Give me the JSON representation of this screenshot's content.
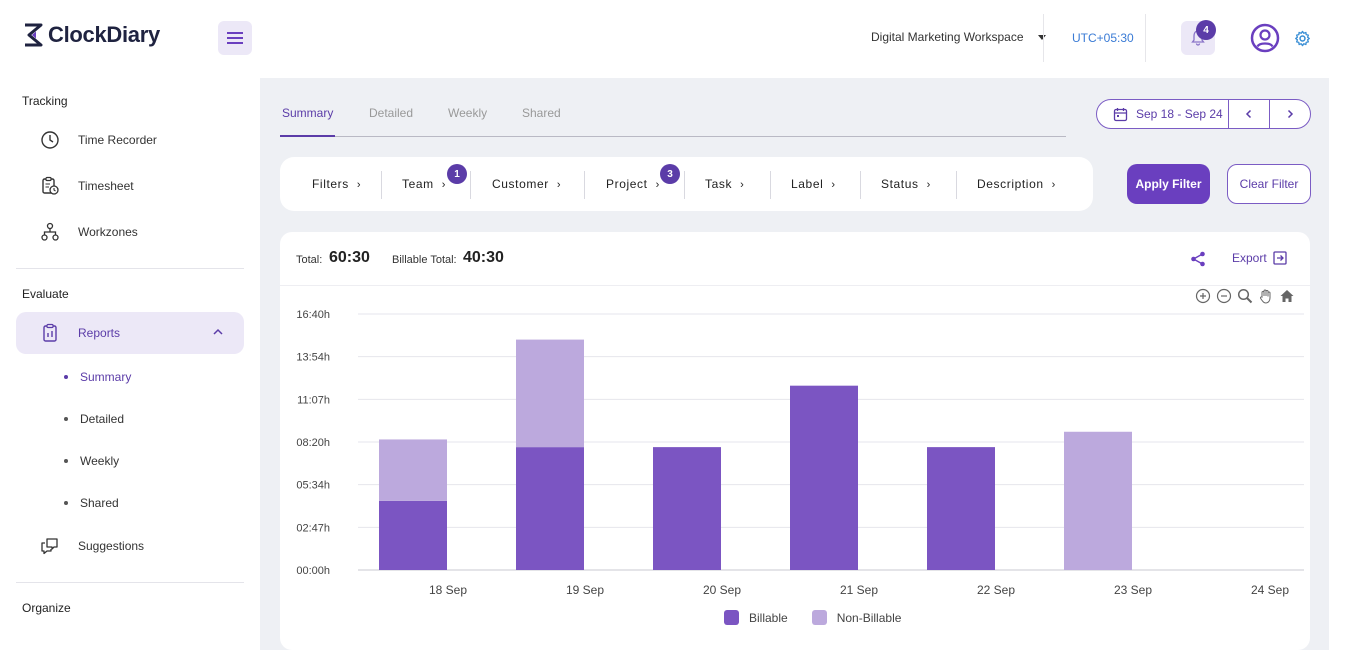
{
  "app": {
    "name": "ClockDiary"
  },
  "header": {
    "workspace": "Digital Marketing Workspace",
    "timezone": "UTC+05:30",
    "notifications": "4"
  },
  "sidebar": {
    "sections": {
      "tracking": "Tracking",
      "evaluate": "Evaluate",
      "organize": "Organize"
    },
    "tracking_items": [
      "Time Recorder",
      "Timesheet",
      "Workzones"
    ],
    "reports": "Reports",
    "report_subitems": [
      "Summary",
      "Detailed",
      "Weekly",
      "Shared"
    ],
    "suggestions": "Suggestions"
  },
  "tabs": [
    "Summary",
    "Detailed",
    "Weekly",
    "Shared"
  ],
  "date_range": "Sep 18 - Sep 24",
  "filters": {
    "items": [
      "Filters",
      "Team",
      "Customer",
      "Project",
      "Task",
      "Label",
      "Status",
      "Description"
    ],
    "team_badge": "1",
    "project_badge": "3"
  },
  "buttons": {
    "apply": "Apply Filter",
    "clear": "Clear Filter",
    "export": "Export"
  },
  "totals": {
    "total_label": "Total:",
    "total_value": "60:30",
    "billable_label": "Billable Total:",
    "billable_value": "40:30"
  },
  "colors": {
    "accent": "#6a3fbf",
    "billable": "#7b55c2",
    "non_billable": "#bca9dd"
  },
  "chart_data": {
    "type": "bar",
    "stacked": true,
    "categories": [
      "18 Sep",
      "19 Sep",
      "20 Sep",
      "21 Sep",
      "22 Sep",
      "23 Sep",
      "24 Sep"
    ],
    "y_ticks": [
      "00:00h",
      "02:47h",
      "05:34h",
      "08:20h",
      "11:07h",
      "13:54h",
      "16:40h"
    ],
    "ylim": [
      0,
      1000
    ],
    "series": [
      {
        "name": "Billable",
        "values": [
          270,
          480,
          480,
          720,
          480,
          0,
          0
        ]
      },
      {
        "name": "Non-Billable",
        "values": [
          240,
          420,
          0,
          0,
          0,
          540,
          0
        ]
      }
    ],
    "legend": "bottom-center",
    "grid": true
  }
}
